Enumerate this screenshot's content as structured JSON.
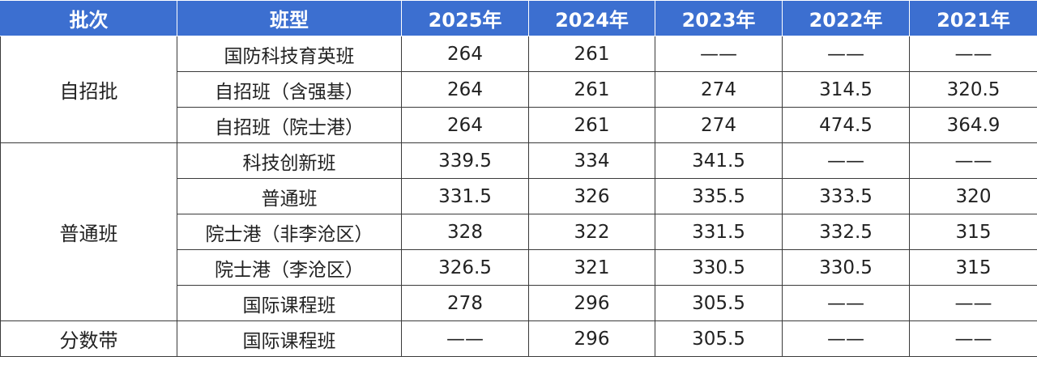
{
  "table": {
    "header": [
      "批次",
      "班型",
      "2025年",
      "2024年",
      "2023年",
      "2022年",
      "2021年"
    ],
    "groups": [
      {
        "label": "自招批",
        "rows": [
          [
            "国防科技育英班",
            264,
            261,
            "——",
            "——",
            "——"
          ],
          [
            "自招班（含强基）",
            264,
            261,
            274,
            314.5,
            320.5
          ],
          [
            "自招班（院士港）",
            264,
            261,
            274,
            474.5,
            364.9
          ]
        ]
      },
      {
        "label": "普通班",
        "rows": [
          [
            "科技创新班",
            339.5,
            334,
            341.5,
            "——",
            "——"
          ],
          [
            "普通班",
            331.5,
            326,
            335.5,
            333.5,
            320
          ],
          [
            "院士港（非李沧区）",
            328,
            322,
            331.5,
            332.5,
            315
          ],
          [
            "院士港（李沧区）",
            326.5,
            321,
            330.5,
            330.5,
            315
          ],
          [
            "国际课程班",
            278,
            296,
            305.5,
            "——",
            "——"
          ]
        ]
      },
      {
        "label": "分数带",
        "rows": [
          [
            "国际课程班",
            "——",
            296,
            305.5,
            "——",
            "——"
          ]
        ]
      }
    ]
  }
}
